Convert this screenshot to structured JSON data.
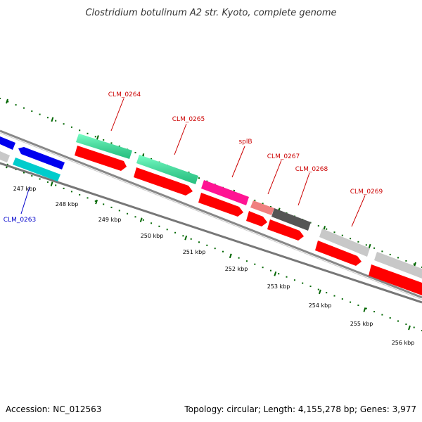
{
  "title": "Clostridium botulinum A2 str. Kyoto, complete genome",
  "footer": {
    "accession": "Accession: NC_012563",
    "summary": "Topology: circular; Length: 4,155,278 bp; Genes: 3,977"
  },
  "ticks": [
    {
      "label": "247 kbp"
    },
    {
      "label": "248 kbp"
    },
    {
      "label": "249 kbp"
    },
    {
      "label": "250 kbp"
    },
    {
      "label": "251 kbp"
    },
    {
      "label": "252 kbp"
    },
    {
      "label": "253 kbp"
    },
    {
      "label": "254 kbp"
    },
    {
      "label": "255 kbp"
    },
    {
      "label": "256 kbp"
    }
  ],
  "gene_labels": [
    {
      "text": "CLM_0263",
      "color": "#0000cc"
    },
    {
      "text": "CLM_0264",
      "color": "#cc0000"
    },
    {
      "text": "CLM_0265",
      "color": "#cc0000"
    },
    {
      "text": "splB",
      "color": "#cc0000"
    },
    {
      "text": "CLM_0267",
      "color": "#cc0000"
    },
    {
      "text": "CLM_0268",
      "color": "#cc0000"
    },
    {
      "text": "CLM_0269",
      "color": "#cc0000"
    }
  ],
  "colors": {
    "cds_red": "#ff0000",
    "gene_blue": "#0000ee",
    "gene_cyan": "#00cccc",
    "gene_mint": "#33ffaa",
    "gene_magenta": "#ff1493",
    "gene_salmon": "#f08080",
    "gene_dark_gray": "#555555",
    "gene_light_gray": "#c8c8c8",
    "backbone_gray": "#888888",
    "tick_green": "#006600"
  }
}
